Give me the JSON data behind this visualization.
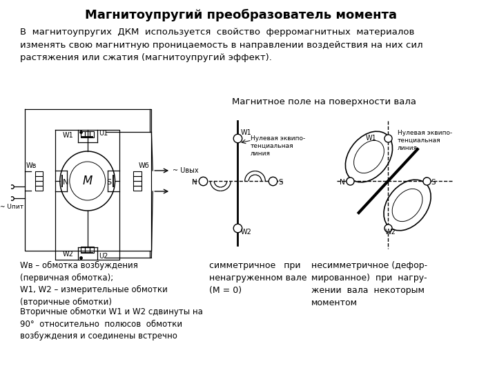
{
  "title": "Магнитоупругий преобразователь момента",
  "title_fontsize": 13,
  "body_text": "В  магнитоупругих  ДКМ  используется  свойство  ферромагнитных  материалов\nизменять свою магнитную проницаемость в направлении воздействия на них сил\nрастяжения или сжатия (магнитоупругий эффект).",
  "body_fontsize": 9.5,
  "diagram_label": "Магнитное поле на поверхности вала",
  "bottom_left_text": "Wв – обмотка возбуждения\n(первичная обмотка);\nW1, W2 – измерительные обмотки\n(вторичные обмотки)",
  "bottom_left2_text": "Вторичные обмотки W1 и W2 сдвинуты на\n90°  относительно  полюсов  обмотки\nвозбуждения и соединены встречно",
  "bottom_mid_text": "симметричное   при\nненагруженном вале\n(М = 0)",
  "bottom_right_text": "несимметричное (дефор-\nмированное)  при  нагру-\nжении  вала  некоторым\nмоментом",
  "bg_color": "#ffffff",
  "text_color": "#000000",
  "diagram_color": "#000000",
  "font_family": "DejaVu Sans"
}
